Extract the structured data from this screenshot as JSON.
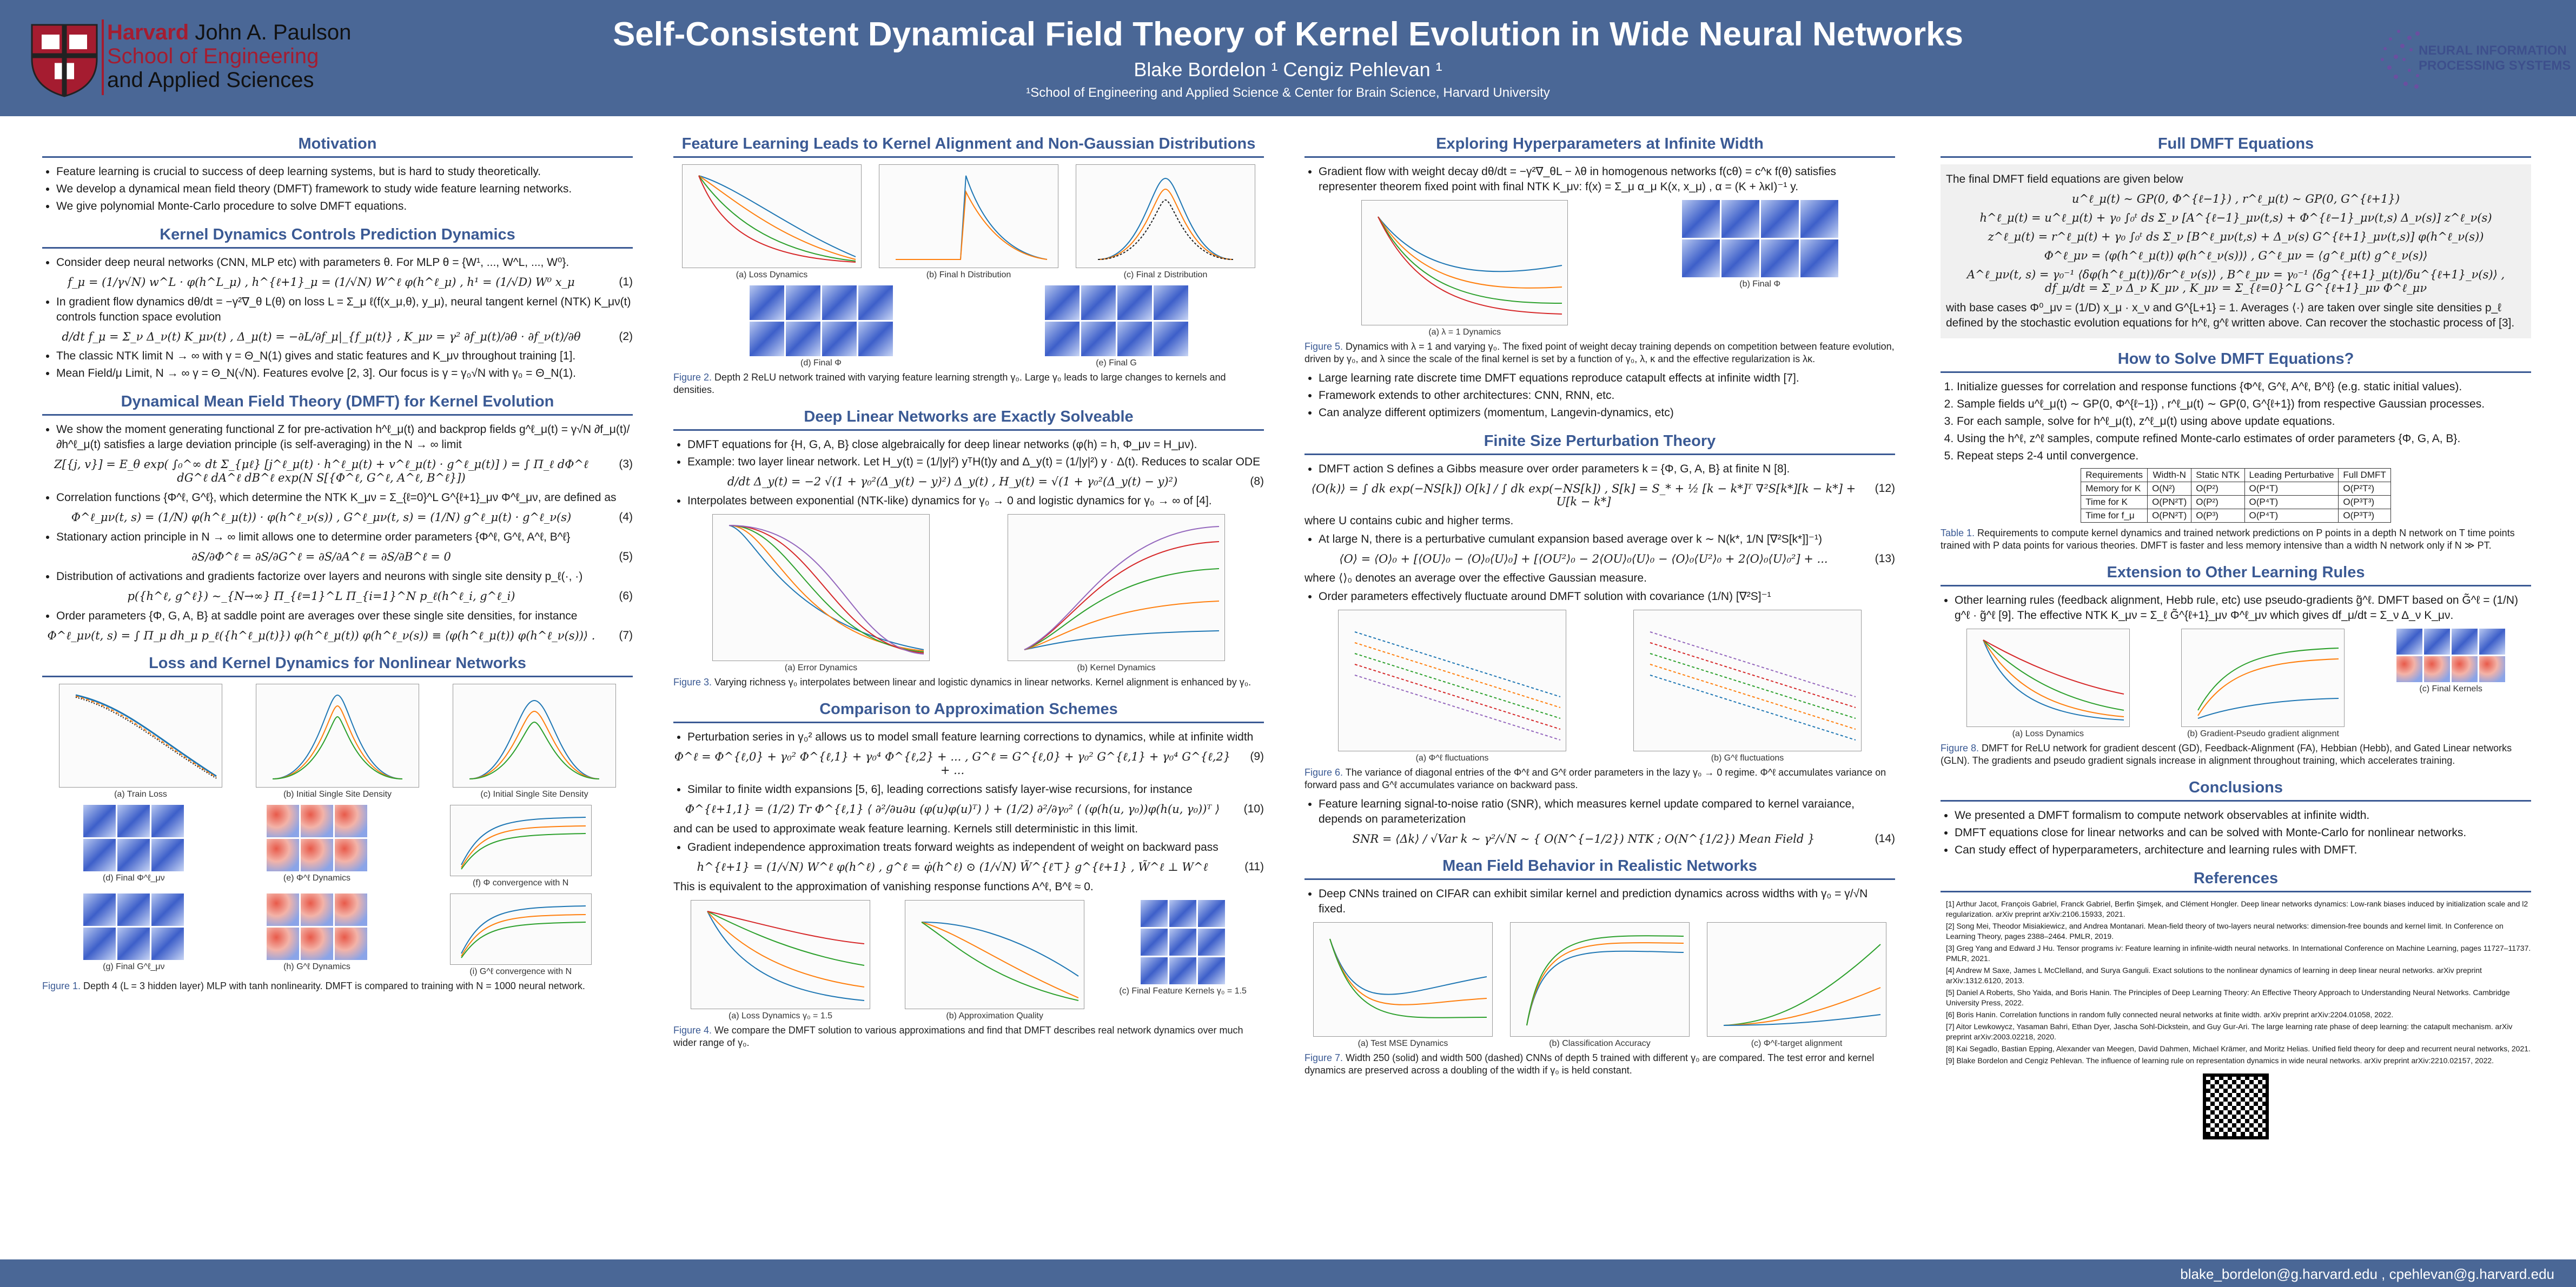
{
  "header": {
    "title": "Self-Consistent Dynamical Field Theory of Kernel Evolution in Wide Neural Networks",
    "authors": "Blake Bordelon ¹     Cengiz Pehlevan ¹",
    "affiliation": "¹School of Engineering and Applied Science & Center for Brain Science, Harvard University",
    "harvard_line1_red": "Harvard",
    "harvard_line1": " John A. Paulson",
    "harvard_line2": "School of Engineering",
    "harvard_line3": "and Applied Sciences",
    "neurips_line1": "NEURAL INFORMATION",
    "neurips_line2": "PROCESSING SYSTEMS"
  },
  "footer": {
    "emails": "blake_bordelon@g.harvard.edu  ,  cpehlevan@g.harvard.edu"
  },
  "col1": {
    "motivation_title": "Motivation",
    "motivation": [
      "Feature learning is crucial to success of deep learning systems, but is hard to study theoretically.",
      "We develop a dynamical mean field theory (DMFT) framework to study wide feature learning networks.",
      "We give polynomial Monte-Carlo procedure to solve DMFT equations."
    ],
    "kernel_title": "Kernel Dynamics Controls Prediction Dynamics",
    "kernel_b1": "Consider deep neural networks (CNN, MLP etc) with parameters θ. For MLP θ = {W¹, ..., W^L, ..., W⁰}.",
    "kernel_eq1": "f_μ = (1/γ√N) w^L · φ(h^L_μ) ,  h^{ℓ+1}_μ = (1/√N) W^ℓ φ(h^ℓ_μ) ,  h¹ = (1/√D) W⁰ x_μ",
    "kernel_b2": "In gradient flow dynamics dθ/dt = −γ²∇_θ L(θ) on loss L = Σ_μ ℓ(f(x_μ,θ), y_μ), neural tangent kernel (NTK) K_μν(t) controls function space evolution",
    "kernel_eq2": "d/dt f_μ = Σ_ν Δ_ν(t) K_μν(t) ,  Δ_μ(t) = −∂L/∂f_μ|_{f_μ(t)} ,  K_μν = γ² ∂f_μ(t)/∂θ · ∂f_ν(t)/∂θ",
    "kernel_b3": "The classic NTK limit N → ∞ with γ = Θ_N(1) gives and static features and K_μν throughout training [1].",
    "kernel_b4": "Mean Field/μ Limit, N → ∞ γ = Θ_N(√N). Features evolve [2, 3]. Our focus is γ = γ₀√N with γ₀ = Θ_N(1).",
    "dmft_title": "Dynamical Mean Field Theory (DMFT) for Kernel Evolution",
    "dmft_b1": "We show the moment generating functional Z for pre-activation h^ℓ_μ(t) and backprop fields g^ℓ_μ(t) = γ√N ∂f_μ(t)/∂h^ℓ_μ(t) satisfies a large deviation principle (is self-averaging) in the N → ∞ limit",
    "dmft_eq3": "Z[{j, v}] = E_θ exp( ∫₀^∞ dt Σ_{μℓ} [j^ℓ_μ(t) · h^ℓ_μ(t) + v^ℓ_μ(t) · g^ℓ_μ(t)] ) = ∫ Π_ℓ dΦ^ℓ dG^ℓ dA^ℓ dB^ℓ exp(N S[{Φ^ℓ, G^ℓ, A^ℓ, B^ℓ}])",
    "dmft_b2": "Correlation functions {Φ^ℓ, G^ℓ}, which determine the NTK K_μν = Σ_{ℓ=0}^L G^{ℓ+1}_μν Φ^ℓ_μν, are defined as",
    "dmft_eq4": "Φ^ℓ_μν(t, s) = (1/N) φ(h^ℓ_μ(t)) · φ(h^ℓ_ν(s)) ,  G^ℓ_μν(t, s) = (1/N) g^ℓ_μ(t) · g^ℓ_ν(s)",
    "dmft_b3": "Stationary action principle in N → ∞ limit allows one to determine order parameters {Φ^ℓ, G^ℓ, A^ℓ, B^ℓ}",
    "dmft_eq5": "∂S/∂Φ^ℓ = ∂S/∂G^ℓ = ∂S/∂A^ℓ = ∂S/∂B^ℓ = 0",
    "dmft_b4": "Distribution of activations and gradients factorize over layers and neurons with single site density p_ℓ(·, ·)",
    "dmft_eq6": "p({h^ℓ, g^ℓ}) ∼_{N→∞} Π_{ℓ=1}^L Π_{i=1}^N p_ℓ(h^ℓ_i, g^ℓ_i)",
    "dmft_b5": "Order parameters {Φ, G, A, B} at saddle point are averages over these single site densities, for instance",
    "dmft_eq7": "Φ^ℓ_μν(t, s) = ∫ Π_μ dh_μ p_ℓ({h^ℓ_μ(t)}) φ(h^ℓ_μ(t)) φ(h^ℓ_ν(s)) ≡ ⟨φ(h^ℓ_μ(t)) φ(h^ℓ_ν(s))⟩ .",
    "loss_title": "Loss and Kernel Dynamics for Nonlinear Networks",
    "fig1_sub_a": "(a) Train Loss",
    "fig1_sub_b": "(b) Initial Single Site Density",
    "fig1_sub_c": "(c) Initial Single Site Density",
    "fig1_sub_d": "(d) Final Φ^ℓ_μν",
    "fig1_sub_e": "(e) Φ^ℓ Dynamics",
    "fig1_sub_f": "(f) Φ convergence with N",
    "fig1_sub_g": "(g) Final G^ℓ_μν",
    "fig1_sub_h": "(h) G^ℓ Dynamics",
    "fig1_sub_i": "(i) G^ℓ convergence with N",
    "fig1_label": "Figure 1.",
    "fig1_caption": " Depth 4 (L = 3 hidden layer) MLP with tanh nonlinearity. DMFT is compared to training with N = 1000 neural network."
  },
  "col2": {
    "feat_title": "Feature Learning Leads to Kernel Alignment and Non-Gaussian Distributions",
    "fig2_sub_a": "(a) Loss Dynamics",
    "fig2_sub_b": "(b) Final h Distribution",
    "fig2_sub_c": "(c) Final z Distribution",
    "fig2_sub_d": "(d) Final Φ",
    "fig2_sub_e": "(e) Final G",
    "fig2_label": "Figure 2.",
    "fig2_caption": " Depth 2 ReLU network trained with varying feature learning strength γ₀. Large γ₀ leads to large changes to kernels and densities.",
    "deep_title": "Deep Linear Networks are Exactly Solveable",
    "deep_b1": "DMFT equations for {H, G, A, B} close algebraically for deep linear networks (φ(h) = h, Φ_μν = H_μν).",
    "deep_b2": "Example: two layer linear network. Let H_y(t) = (1/|y|²) yᵀH(t)y and Δ_y(t) = (1/|y|²) y · Δ(t). Reduces to scalar ODE",
    "deep_eq8": "d/dt Δ_y(t) = −2 √(1 + γ₀²(Δ_y(t) − y)²) Δ_y(t) ,  H_y(t) = √(1 + γ₀²(Δ_y(t) − y)²)",
    "deep_b3": "Interpolates between exponential (NTK-like) dynamics for γ₀ → 0 and logistic dynamics for γ₀ → ∞ of [4].",
    "fig3_sub_a": "(a) Error Dynamics",
    "fig3_sub_b": "(b) Kernel Dynamics",
    "fig3_label": "Figure 3.",
    "fig3_caption": " Varying richness γ₀ interpolates between linear and logistic dynamics in linear networks. Kernel alignment is enhanced by γ₀.",
    "comp_title": "Comparison to Approximation Schemes",
    "comp_b1": "Perturbation series in γ₀² allows us to model small feature learning corrections to dynamics, while at infinite width",
    "comp_eq9": "Φ^ℓ = Φ^{ℓ,0} + γ₀² Φ^{ℓ,1} + γ₀⁴ Φ^{ℓ,2} + ... ,  G^ℓ = G^{ℓ,0} + γ₀² G^{ℓ,1} + γ₀⁴ G^{ℓ,2} + ...",
    "comp_b2": "Similar to finite width expansions [5, 6], leading corrections satisfy layer-wise recursions, for instance",
    "comp_eq10": "Φ^{ℓ+1,1} = (1/2) Tr Φ^{ℓ,1} ⟨ ∂²/∂u∂u (φ(u)φ(u)ᵀ) ⟩ + (1/2) ∂²/∂γ₀² ⟨ (φ(h(u, γ₀))φ(h(u, γ₀))ᵀ ⟩",
    "comp_b3": "and can be used to approximate weak feature learning. Kernels still deterministic in this limit.",
    "comp_b4": "Gradient independence approximation treats forward weights as independent of weight on backward pass",
    "comp_eq11": "h^{ℓ+1} = (1/√N) W^ℓ φ(h^ℓ) ,  g^ℓ = φ̇(h^ℓ) ⊙ (1/√N) W̃^{ℓ⊤} g^{ℓ+1} ,  W̃^ℓ ⊥ W^ℓ",
    "comp_b5": "This is equivalent to the approximation of vanishing response functions A^ℓ, B^ℓ ≈ 0.",
    "fig4_sub_a": "(a) Loss Dynamics γ₀ = 1.5",
    "fig4_sub_b": "(b) Approximation Quality",
    "fig4_sub_c": "(c) Final Feature Kernels γ₀ = 1.5",
    "fig4_label": "Figure 4.",
    "fig4_caption": " We compare the DMFT solution to various approximations and find that DMFT describes real network dynamics over much wider range of γ₀."
  },
  "col3": {
    "hyper_title": "Exploring Hyperparameters at Infinite Width",
    "hyper_b1": "Gradient flow with weight decay dθ/dt = −γ²∇_θL − λθ in homogenous networks f(cθ) = c^κ f(θ) satisfies representer theorem fixed point with final NTK K_μν: f(x) = Σ_μ α_μ K(x, x_μ) , α = (K + λκI)⁻¹ y.",
    "fig5_sub_a": "(a) λ = 1 Dynamics",
    "fig5_sub_b": "(b) Final Φ",
    "fig5_label": "Figure 5.",
    "fig5_caption": " Dynamics with λ = 1 and varying γ₀. The fixed point of weight decay training depends on competition between feature evolution, driven by γ₀, and λ since the scale of the final kernel is set by a function of γ₀, λ, κ and the effective regularization is λκ.",
    "hyper_b2": "Large learning rate discrete time DMFT equations reproduce catapult effects at infinite width [7].",
    "hyper_b3": "Framework extends to other architectures: CNN, RNN, etc.",
    "hyper_b4": "Can analyze different optimizers (momentum, Langevin-dynamics, etc)",
    "finite_title": "Finite Size Perturbation Theory",
    "finite_b1": "DMFT action S defines a Gibbs measure over order parameters k = {Φ, G, A, B} at finite N [8].",
    "finite_eq12": "⟨O(k)⟩ = ∫ dk exp(−NS[k]) O[k] / ∫ dk exp(−NS[k]) ,  S[k] = S_* + ½ [k − k*]ᵀ ∇²S[k*][k − k*] + U[k − k*]",
    "finite_b2": "where U contains cubic and higher terms.",
    "finite_b3": "At large N, there is a perturbative cumulant expansion based average over k ∼ N(k*, 1/N [∇²S[k*]]⁻¹)",
    "finite_eq13": "⟨O⟩ = ⟨O⟩₀ + [⟨OU⟩₀ − ⟨O⟩₀⟨U⟩₀] + [⟨OU²⟩₀ − 2⟨OU⟩₀⟨U⟩₀ − ⟨O⟩₀⟨U²⟩₀ + 2⟨O⟩₀⟨U⟩₀²] + ...",
    "finite_b4": "where ⟨⟩₀ denotes an average over the effective Gaussian measure.",
    "finite_b5": "Order parameters effectively fluctuate around DMFT solution with covariance (1/N) [∇²S]⁻¹",
    "fig6_sub_a": "(a) Φ^ℓ fluctuations",
    "fig6_sub_b": "(b) G^ℓ fluctuations",
    "fig6_label": "Figure 6.",
    "fig6_caption": " The variance of diagonal entries of the Φ^ℓ and G^ℓ order parameters in the lazy γ₀ → 0 regime. Φ^ℓ accumulates variance on forward pass and G^ℓ accumulates variance on backward pass.",
    "finite_b6": "Feature learning signal-to-noise ratio (SNR), which measures kernel update compared to kernel varaiance, depends on parameterization",
    "finite_eq14": "SNR = ⟨Δk⟩ / √Var k ∼ γ²/√N ∼ { O(N^{−1/2}) NTK ; O(N^{1/2}) Mean Field }",
    "mf_title": "Mean Field Behavior in Realistic Networks",
    "mf_b1": "Deep CNNs trained on CIFAR can exhibit similar kernel and prediction dynamics across widths with γ₀ = γ/√N fixed.",
    "fig7_sub_a": "(a) Test MSE Dynamics",
    "fig7_sub_b": "(b) Classification Accuracy",
    "fig7_sub_c": "(c) Φ^ℓ-target alignment",
    "fig7_label": "Figure 7.",
    "fig7_caption": " Width 250 (solid) and width 500 (dashed) CNNs of depth 5 trained with different γ₀ are compared. The test error and kernel dynamics are preserved across a doubling of the width if γ₀ is held constant."
  },
  "col4": {
    "full_title": "Full DMFT Equations",
    "full_intro": "The final DMFT field equations are given below",
    "full_eq1": "u^ℓ_μ(t) ∼ GP(0, Φ^{ℓ−1}) ,  r^ℓ_μ(t) ∼ GP(0, G^{ℓ+1})",
    "full_eq2": "h^ℓ_μ(t) = u^ℓ_μ(t) + γ₀ ∫₀ᵗ ds Σ_ν [A^{ℓ−1}_μν(t,s) + Φ^{ℓ−1}_μν(t,s) Δ_ν(s)] z^ℓ_ν(s)",
    "full_eq3": "z^ℓ_μ(t) = r^ℓ_μ(t) + γ₀ ∫₀ᵗ ds Σ_ν [B^ℓ_μν(t,s) + Δ_ν(s) G^{ℓ+1}_μν(t,s)] φ(h^ℓ_ν(s))",
    "full_eq4": "Φ^ℓ_μν = ⟨φ(h^ℓ_μ(t)) φ(h^ℓ_ν(s))⟩ ,  G^ℓ_μν = ⟨g^ℓ_μ(t) g^ℓ_ν(s)⟩",
    "full_eq5": "A^ℓ_μν(t, s) = γ₀⁻¹ ⟨δφ(h^ℓ_μ(t))/δr^ℓ_ν(s)⟩ ,  B^ℓ_μν = γ₀⁻¹ ⟨δg^{ℓ+1}_μ(t)/δu^{ℓ+1}_ν(s)⟩ ,  df_μ/dt = Σ_ν Δ_ν K_μν ,  K_μν = Σ_{ℓ=0}^L G^{ℓ+1}_μν Φ^ℓ_μν",
    "full_outro": "with base cases Φ⁰_μν = (1/D) x_μ · x_ν and G^{L+1} = 1. Averages ⟨·⟩ are taken over single site densities p_ℓ defined by the stochastic evolution equations for h^ℓ, g^ℓ written above. Can recover the stochastic process of [3].",
    "how_title": "How to Solve DMFT Equations?",
    "how_steps": [
      "Initialize guesses for correlation and response functions {Φ^ℓ, G^ℓ, A^ℓ, B^ℓ} (e.g. static initial values).",
      "Sample fields u^ℓ_μ(t) ∼ GP(0, Φ^{ℓ−1}) , r^ℓ_μ(t) ∼ GP(0, G^{ℓ+1}) from respective Gaussian processes.",
      "For each sample, solve for h^ℓ_μ(t), z^ℓ_μ(t) using above update equations.",
      "Using the h^ℓ, z^ℓ samples, compute refined Monte-carlo estimates of order parameters {Φ, G, A, B}.",
      "Repeat steps 2-4 until convergence."
    ],
    "table_header": [
      "Requirements",
      "Width-N",
      "Static NTK",
      "Leading Perturbative",
      "Full DMFT"
    ],
    "table_rows": [
      [
        "Memory for K",
        "O(N²)",
        "O(P²)",
        "O(P⁴T)",
        "O(P²T²)"
      ],
      [
        "Time for K",
        "O(PN²T)",
        "O(P²)",
        "O(P⁴T)",
        "O(P³T³)"
      ],
      [
        "Time for f_μ",
        "O(PN²T)",
        "O(P³)",
        "O(P⁴T)",
        "O(P³T³)"
      ]
    ],
    "table_label": "Table 1.",
    "table_caption": " Requirements to compute kernel dynamics and trained network predictions on P points in a depth N network on T time points trained with P data points for various theories. DMFT is faster and less memory intensive than a width N network only if N ≫ PT.",
    "ext_title": "Extension to Other Learning Rules",
    "ext_b1": "Other learning rules (feedback alignment, Hebb rule, etc) use pseudo-gradients g̃^ℓ. DMFT based on G̃^ℓ = (1/N) g^ℓ · g̃^ℓ [9]. The effective NTK K_μν = Σ_ℓ G̃^{ℓ+1}_μν Φ^ℓ_μν which gives df_μ/dt = Σ_ν Δ_ν K_μν.",
    "fig8_sub_a": "(a) Loss Dynamics",
    "fig8_sub_b": "(b) Gradient-Pseudo gradient alignment",
    "fig8_sub_c": "(c) Final Kernels",
    "fig8_label": "Figure 8.",
    "fig8_caption": " DMFT for ReLU network for gradient descent (GD), Feedback-Alignment (FA), Hebbian (Hebb), and Gated Linear networks (GLN). The gradients and pseudo gradient signals increase in alignment throughout training, which accelerates training.",
    "concl_title": "Conclusions",
    "conclusions": [
      "We presented a DMFT formalism to compute network observables at infinite width.",
      "DMFT equations close for linear networks and can be solved with Monte-Carlo for nonlinear networks.",
      "Can study effect of hyperparameters, architecture and learning rules with DMFT."
    ],
    "refs_title": "References",
    "refs": [
      "[1] Arthur Jacot, François Gabriel, Franck Gabriel, Berfin Şimşek, and Clément Hongler. Deep linear networks dynamics: Low-rank biases induced by initialization scale and l2 regularization. arXiv preprint arXiv:2106.15933, 2021.",
      "[2] Song Mei, Theodor Misiakiewicz, and Andrea Montanari. Mean-field theory of two-layers neural networks: dimension-free bounds and kernel limit. In Conference on Learning Theory, pages 2388–2464. PMLR, 2019.",
      "[3] Greg Yang and Edward J Hu. Tensor programs iv: Feature learning in infinite-width neural networks. In International Conference on Machine Learning, pages 11727–11737. PMLR, 2021.",
      "[4] Andrew M Saxe, James L McClelland, and Surya Ganguli. Exact solutions to the nonlinear dynamics of learning in deep linear neural networks. arXiv preprint arXiv:1312.6120, 2013.",
      "[5] Daniel A Roberts, Sho Yaida, and Boris Hanin. The Principles of Deep Learning Theory: An Effective Theory Approach to Understanding Neural Networks. Cambridge University Press, 2022.",
      "[6] Boris Hanin. Correlation functions in random fully connected neural networks at finite width. arXiv preprint arXiv:2204.01058, 2022.",
      "[7] Aitor Lewkowycz, Yasaman Bahri, Ethan Dyer, Jascha Sohl-Dickstein, and Guy Gur-Ari. The large learning rate phase of deep learning: the catapult mechanism. arXiv preprint arXiv:2003.02218, 2020.",
      "[8] Kai Segadlo, Bastian Epping, Alexander van Meegen, David Dahmen, Michael Krämer, and Moritz Helias. Unified field theory for deep and recurrent neural networks, 2021.",
      "[9] Blake Bordelon and Cengiz Pehlevan. The influence of learning rule on representation dynamics in wide neural networks. arXiv preprint arXiv:2210.02157, 2022."
    ]
  }
}
